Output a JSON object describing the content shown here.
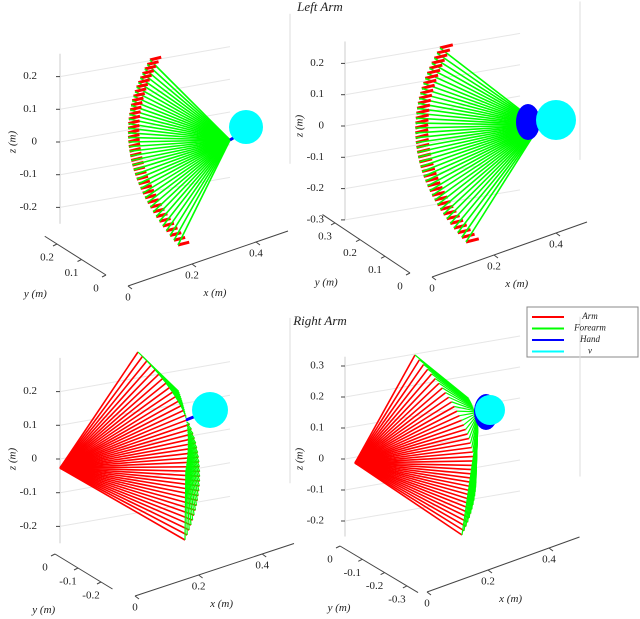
{
  "legend": {
    "location": "east",
    "series": [
      {
        "name": "Arm",
        "color": "#ff0000"
      },
      {
        "name": "Forearm",
        "color": "#00ff00"
      },
      {
        "name": "Hand",
        "color": "#0000ff"
      },
      {
        "name": "v",
        "color": "#00ffff"
      }
    ]
  },
  "chart_data": [
    {
      "type": "line3d",
      "title": "Left Arm",
      "xlabel": "x (m)",
      "ylabel": "y (m)",
      "zlabel": "z (m)",
      "xlim": [
        0,
        0.5
      ],
      "ylim": [
        0,
        0.25
      ],
      "zlim": [
        -0.25,
        0.27
      ],
      "xticks": [
        0,
        0.2,
        0.4
      ],
      "yticks": [
        0,
        0.1,
        0.2
      ],
      "zticks": [
        -0.2,
        -0.1,
        0,
        0.1,
        0.2
      ],
      "grid": true
    },
    {
      "type": "line3d",
      "xlabel": "x (m)",
      "ylabel": "y (m)",
      "zlabel": "z (m)",
      "xlim": [
        0,
        0.5
      ],
      "ylim": [
        0,
        0.35
      ],
      "zlim": [
        -0.3,
        0.27
      ],
      "xticks": [
        0,
        0.2,
        0.4
      ],
      "yticks": [
        0,
        0.1,
        0.2,
        0.3
      ],
      "zticks": [
        -0.3,
        -0.2,
        -0.1,
        0,
        0.1,
        0.2
      ],
      "grid": true
    },
    {
      "type": "line3d",
      "title": "Right Arm",
      "xlabel": "x (m)",
      "ylabel": "y (m)",
      "zlabel": "z (m)",
      "xlim": [
        0,
        0.5
      ],
      "ylim": [
        -0.25,
        0
      ],
      "zlim": [
        -0.25,
        0.3
      ],
      "xticks": [
        0,
        0.2,
        0.4
      ],
      "yticks": [
        -0.2,
        -0.1,
        0
      ],
      "zticks": [
        -0.2,
        -0.1,
        0,
        0.1,
        0.2
      ],
      "grid": true
    },
    {
      "type": "line3d",
      "xlabel": "x (m)",
      "ylabel": "y (m)",
      "zlabel": "z (m)",
      "xlim": [
        0,
        0.5
      ],
      "ylim": [
        -0.35,
        0
      ],
      "zlim": [
        -0.25,
        0.33
      ],
      "xticks": [
        0,
        0.2,
        0.4
      ],
      "yticks": [
        -0.3,
        -0.2,
        -0.1,
        0
      ],
      "zticks": [
        -0.2,
        -0.1,
        0,
        0.1,
        0.2,
        0.3
      ],
      "grid": true
    }
  ]
}
